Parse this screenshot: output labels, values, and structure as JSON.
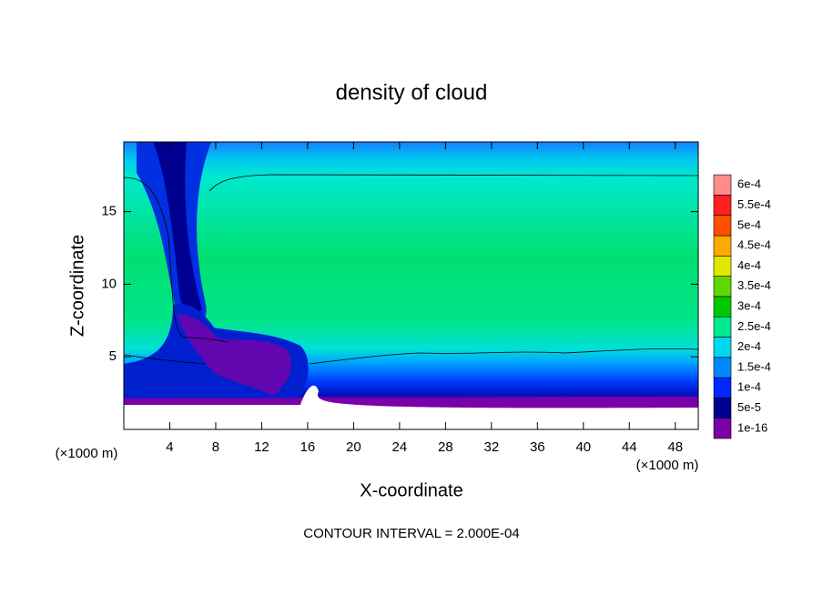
{
  "chart_data": {
    "type": "contour",
    "title": "density of cloud",
    "x_label": "X-coordinate",
    "y_label": "Z-coordinate",
    "x_unit": "(×1000 m)",
    "y_unit": "(×1000 m)",
    "footnote": "CONTOUR INTERVAL = 2.000E-04",
    "xlim": [
      0,
      50
    ],
    "xticks": [
      4,
      8,
      12,
      16,
      20,
      24,
      28,
      32,
      36,
      40,
      44,
      48
    ],
    "ylim": [
      0,
      19.8
    ],
    "yticks": [
      5,
      10,
      15
    ],
    "colorbar": [
      {
        "value": 1e-16,
        "label": "1e-16",
        "color": "#7a00a8"
      },
      {
        "value": 5e-05,
        "label": "5e-5",
        "color": "#000090"
      },
      {
        "value": 0.0001,
        "label": "1e-4",
        "color": "#0028ff"
      },
      {
        "value": 0.00015,
        "label": "1.5e-4",
        "color": "#0088ff"
      },
      {
        "value": 0.0002,
        "label": "2e-4",
        "color": "#00d8f0"
      },
      {
        "value": 0.00025,
        "label": "2.5e-4",
        "color": "#00e890"
      },
      {
        "value": 0.0003,
        "label": "3e-4",
        "color": "#00c800"
      },
      {
        "value": 0.00035,
        "label": "3.5e-4",
        "color": "#60d800"
      },
      {
        "value": 0.0004,
        "label": "4e-4",
        "color": "#e0e800"
      },
      {
        "value": 0.00045,
        "label": "4.5e-4",
        "color": "#ffa800"
      },
      {
        "value": 0.0005,
        "label": "5e-4",
        "color": "#ff5000"
      },
      {
        "value": 0.00055,
        "label": "5.5e-4",
        "color": "#ff2020"
      },
      {
        "value": 0.0006,
        "label": "6e-4",
        "color": "#ff8c8c"
      }
    ]
  }
}
